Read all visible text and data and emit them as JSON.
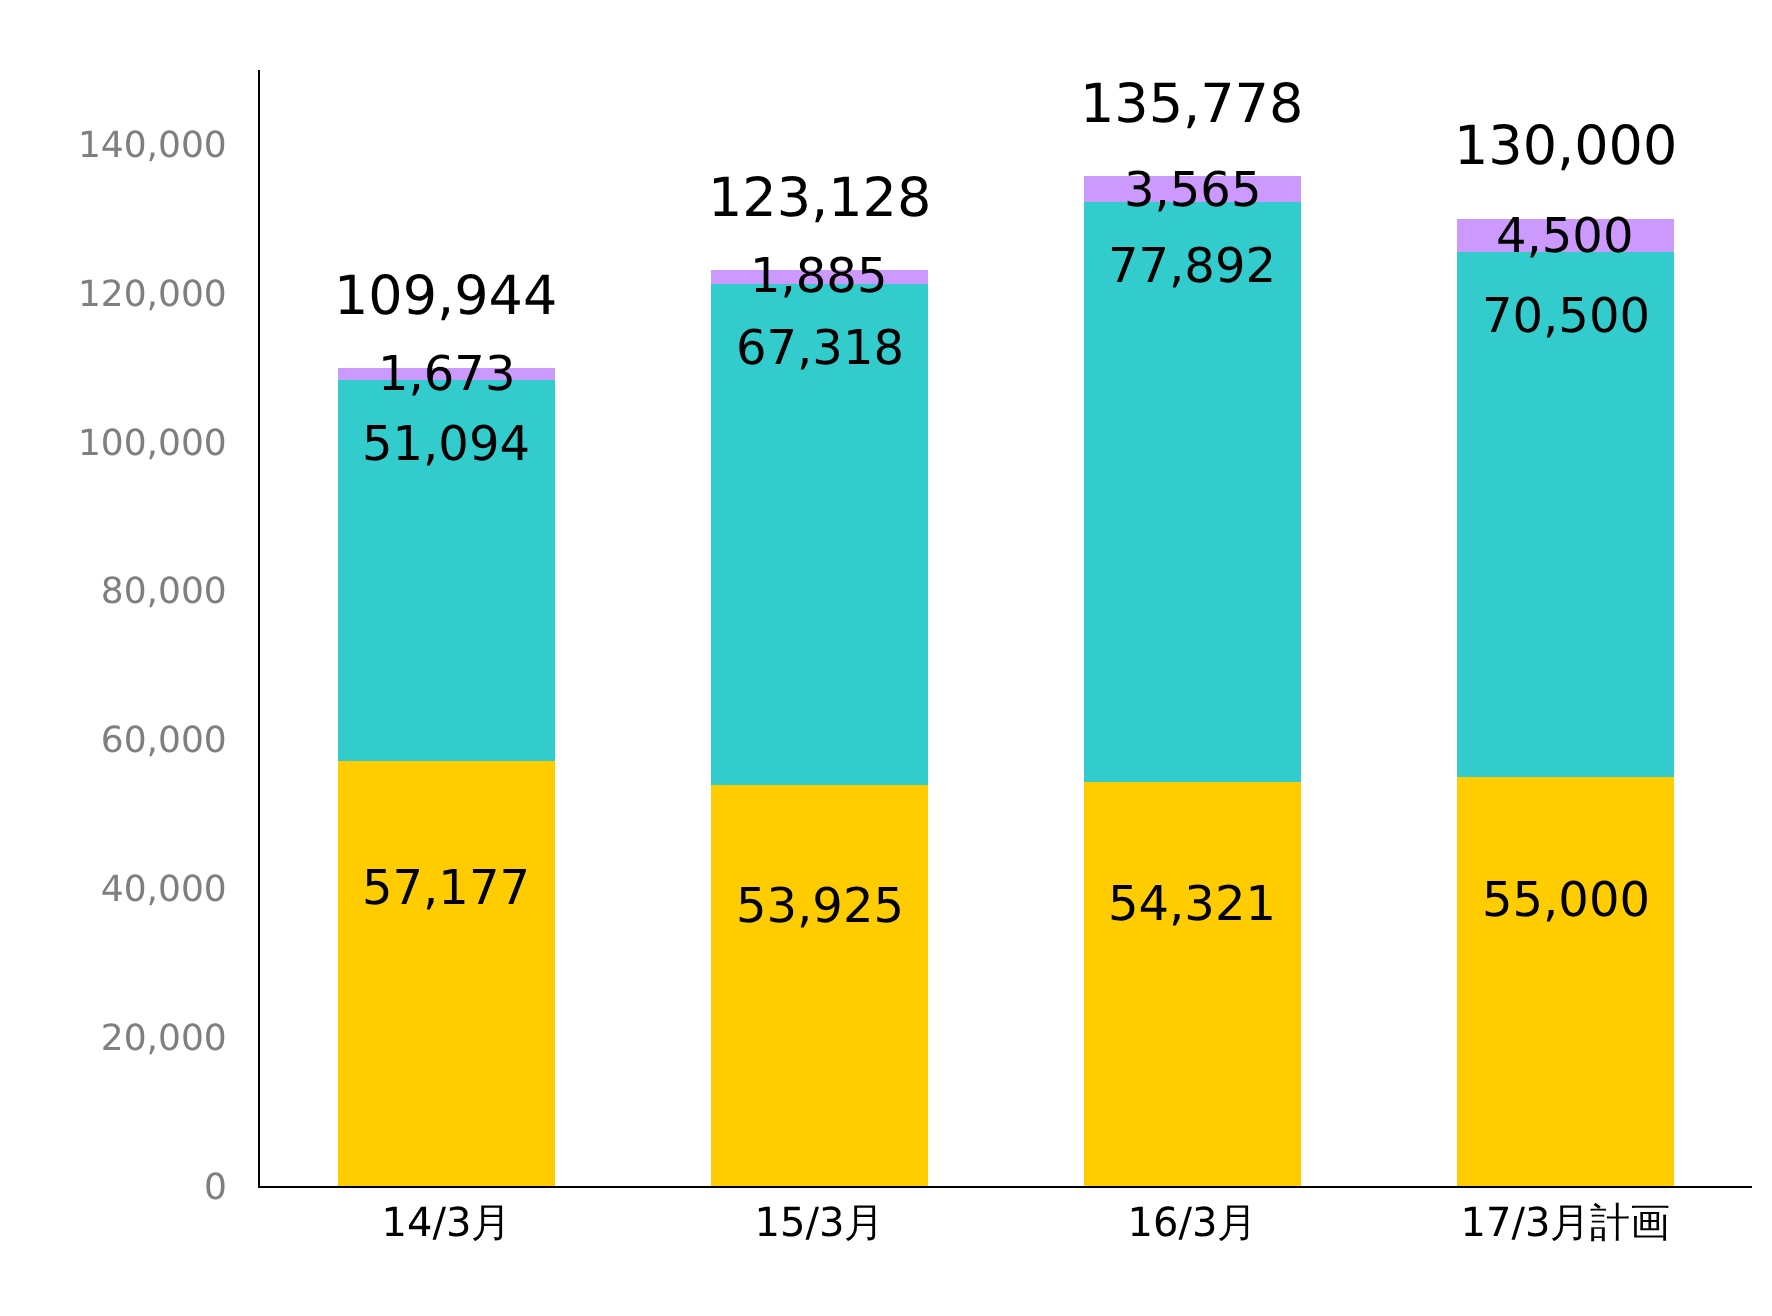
{
  "chart_data": {
    "type": "bar",
    "stacked": true,
    "categories": [
      "14/3月",
      "15/3月",
      "16/3月",
      "17/3月計画"
    ],
    "series": [
      {
        "name": null,
        "color": "#ffcc00",
        "values": [
          57177,
          53925,
          54321,
          55000
        ],
        "value_labels": [
          "57,177",
          "53,925",
          "54,321",
          "55,000"
        ]
      },
      {
        "name": null,
        "color": "#33cccc",
        "values": [
          51094,
          67318,
          77892,
          70500
        ],
        "value_labels": [
          "51,094",
          "67,318",
          "77,892",
          "70,500"
        ]
      },
      {
        "name": null,
        "color": "#cc99ff",
        "values": [
          1673,
          1885,
          3565,
          4500
        ],
        "value_labels": [
          "1,673",
          "1,885",
          "3,565",
          "4,500"
        ]
      }
    ],
    "totals": [
      "109,944",
      "123,128",
      "135,778",
      "130,000"
    ],
    "ylim": [
      0,
      150000
    ],
    "yticks": [
      {
        "value": 0,
        "label": "0"
      },
      {
        "value": 20000,
        "label": "20,000"
      },
      {
        "value": 40000,
        "label": "40,000"
      },
      {
        "value": 60000,
        "label": "60,000"
      },
      {
        "value": 80000,
        "label": "80,000"
      },
      {
        "value": 100000,
        "label": "100,000"
      },
      {
        "value": 120000,
        "label": "120,000"
      },
      {
        "value": 140000,
        "label": "140,000"
      }
    ],
    "grid": false
  }
}
